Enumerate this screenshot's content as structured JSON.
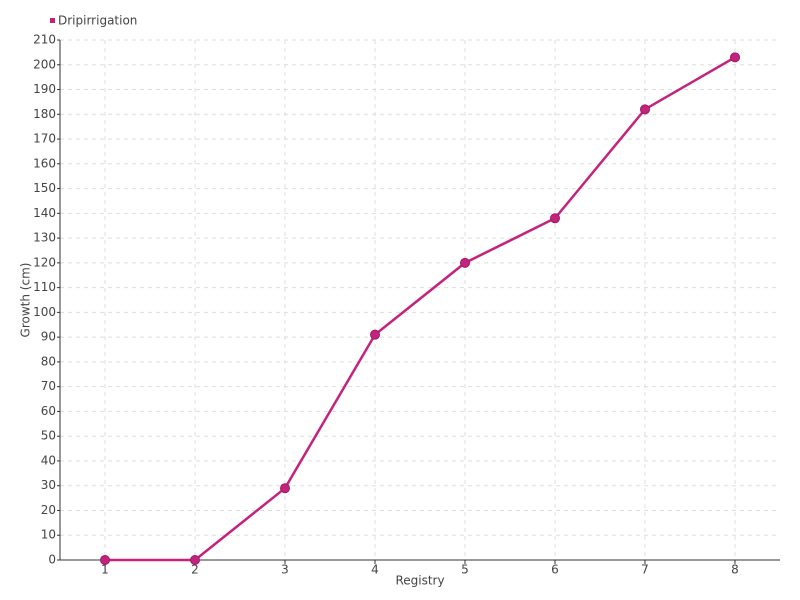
{
  "chart_data": {
    "type": "line",
    "x_label": "Registry",
    "y_label": "Growth (cm)",
    "categories": [
      "1",
      "2",
      "3",
      "4",
      "5",
      "6",
      "7",
      "8"
    ],
    "series": [
      {
        "name": "Dripirrigation",
        "color": "#c4237d",
        "values": [
          0,
          0,
          29,
          91,
          120,
          138,
          182,
          203
        ]
      }
    ],
    "ylim": [
      0,
      210
    ],
    "yticks": [
      0,
      10,
      20,
      30,
      40,
      50,
      60,
      70,
      80,
      90,
      100,
      110,
      120,
      130,
      140,
      150,
      160,
      170,
      180,
      190,
      200,
      210
    ],
    "grid": true
  }
}
